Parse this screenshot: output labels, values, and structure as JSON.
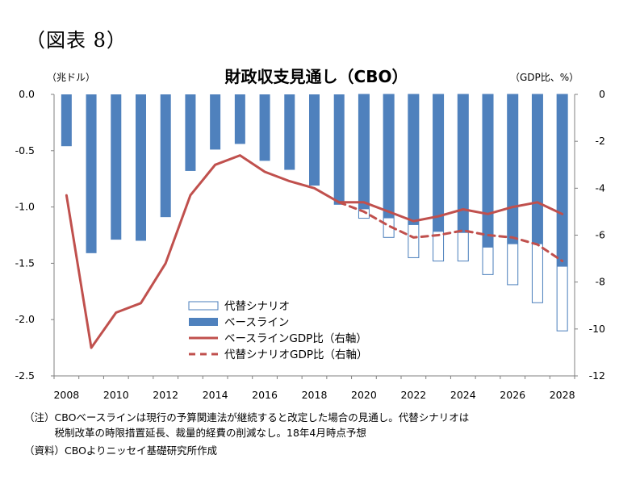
{
  "figure_label": "（図表 8）",
  "notes": [
    "（注）CBOベースラインは現行の予算関連法が継続すると改定した場合の見通し。代替シナリオは",
    "　　　税制改革の時限措置延長、裁量的経費の削減なし。18年4月時点予想",
    "（資料）CBOよりニッセイ基礎研究所作成"
  ],
  "chart_data": {
    "type": "bar+line",
    "title": "財政収支見通し（CBO）",
    "ylabel_left": "（兆ドル）",
    "ylabel_right": "（GDP比、%）",
    "ylim_left": [
      -2.5,
      0
    ],
    "ylim_right": [
      -12,
      0
    ],
    "yticks_left": [
      "0.0",
      "-0.5",
      "-1.0",
      "-1.5",
      "-2.0",
      "-2.5"
    ],
    "yticks_right": [
      "0",
      "-2",
      "-4",
      "-6",
      "-8",
      "-10",
      "-12"
    ],
    "xtick_labels": [
      "2008",
      "2010",
      "2012",
      "2014",
      "2016",
      "2018",
      "2020",
      "2022",
      "2024",
      "2026",
      "2028"
    ],
    "x": [
      2008,
      2009,
      2010,
      2011,
      2012,
      2013,
      2014,
      2015,
      2016,
      2017,
      2018,
      2019,
      2020,
      2021,
      2022,
      2023,
      2024,
      2025,
      2026,
      2027,
      2028
    ],
    "grid": false,
    "legend_position": "lower-middle",
    "series": [
      {
        "name": "代替シナリオ",
        "kind": "bar-outline",
        "axis": "left",
        "color": "#4a7ebb",
        "values": [
          null,
          null,
          null,
          null,
          null,
          null,
          null,
          null,
          null,
          null,
          null,
          null,
          -1.1,
          -1.27,
          -1.45,
          -1.48,
          -1.48,
          -1.6,
          -1.69,
          -1.85,
          -2.1
        ]
      },
      {
        "name": "ベースライン",
        "kind": "bar",
        "axis": "left",
        "color": "#4f81bd",
        "values": [
          -0.46,
          -1.41,
          -1.29,
          -1.3,
          -1.09,
          -0.68,
          -0.49,
          -0.44,
          -0.59,
          -0.67,
          -0.81,
          -0.98,
          -1.02,
          -1.1,
          -1.16,
          -1.22,
          -1.23,
          -1.36,
          -1.33,
          -1.33,
          -1.53
        ]
      },
      {
        "name": "ベースラインGDP比（右軸）",
        "kind": "line",
        "axis": "right",
        "color": "#c0504d",
        "values": [
          -4.3,
          -10.8,
          -9.3,
          -8.9,
          -7.2,
          -4.3,
          -3.0,
          -2.6,
          -3.3,
          -3.7,
          -4.0,
          -4.6,
          -4.6,
          -5.0,
          -5.4,
          -5.2,
          -4.9,
          -5.1,
          -4.8,
          -4.6,
          -5.1
        ]
      },
      {
        "name": "代替シナリオGDP比（右軸）",
        "kind": "line-dashed",
        "axis": "right",
        "color": "#c0504d",
        "values": [
          null,
          null,
          null,
          null,
          null,
          null,
          null,
          null,
          null,
          null,
          null,
          -4.6,
          -5.0,
          -5.6,
          -6.1,
          -6.0,
          -5.8,
          -6.0,
          -6.1,
          -6.4,
          -7.1
        ]
      }
    ]
  }
}
